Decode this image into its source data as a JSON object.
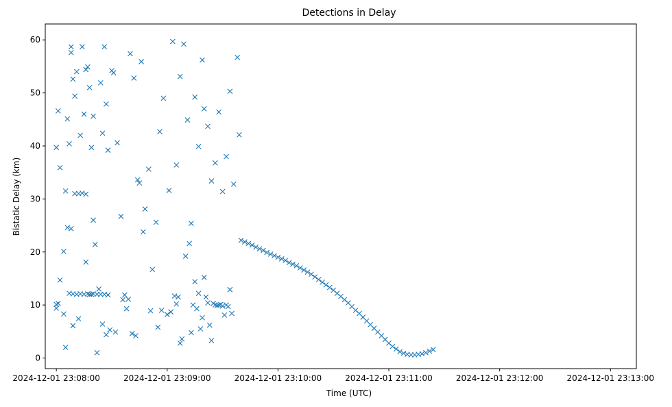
{
  "chart_data": {
    "type": "scatter",
    "title": "Detections in Delay",
    "xlabel": "Time (UTC)",
    "ylabel": "Bistatic Delay (km)",
    "x_unit": "datetime",
    "xlim": [
      "2024-12-01 23:07:54",
      "2024-12-01 23:13:14"
    ],
    "ylim": [
      -2,
      63
    ],
    "x_ticks": [
      "2024-12-01 23:08:00",
      "2024-12-01 23:09:00",
      "2024-12-01 23:10:00",
      "2024-12-01 23:11:00",
      "2024-12-01 23:12:00",
      "2024-12-01 23:13:00"
    ],
    "y_ticks": [
      0,
      10,
      20,
      30,
      40,
      50,
      60
    ],
    "marker": "x",
    "color": "#1f77b4",
    "grid": false,
    "legend": "none",
    "series": [
      {
        "note_points": "time in seconds after 2024-12-01 23:08:00 is not used; points below are [time, delay_km]",
        "points": [
          [
            "23:08:00",
            10.1
          ],
          [
            "23:08:00",
            9.4
          ],
          [
            "23:08:01",
            10.3
          ],
          [
            "23:08:02",
            14.7
          ],
          [
            "23:08:04",
            20.1
          ],
          [
            "23:08:05",
            31.5
          ],
          [
            "23:08:06",
            24.6
          ],
          [
            "23:08:07",
            12.2
          ],
          [
            "23:08:08",
            24.4
          ],
          [
            "23:08:09",
            12.1
          ],
          [
            "23:08:10",
            31.0
          ],
          [
            "23:08:11",
            12.0
          ],
          [
            "23:08:12",
            31.0
          ],
          [
            "23:08:13",
            12.1
          ],
          [
            "23:08:14",
            31.1
          ],
          [
            "23:08:15",
            12.0
          ],
          [
            "23:08:16",
            30.9
          ],
          [
            "23:08:17",
            12.1
          ],
          [
            "23:08:18",
            12.0
          ],
          [
            "23:08:19",
            12.0
          ],
          [
            "23:08:20",
            12.1
          ],
          [
            "23:08:22",
            12.0
          ],
          [
            "23:08:24",
            12.0
          ],
          [
            "23:08:26",
            12.0
          ],
          [
            "23:08:28",
            11.9
          ],
          [
            "23:08:00",
            39.7
          ],
          [
            "23:08:01",
            46.6
          ],
          [
            "23:08:02",
            35.9
          ],
          [
            "23:08:04",
            8.3
          ],
          [
            "23:08:06",
            45.1
          ],
          [
            "23:08:07",
            40.4
          ],
          [
            "23:08:08",
            58.7
          ],
          [
            "23:08:08",
            57.6
          ],
          [
            "23:08:09",
            52.6
          ],
          [
            "23:08:10",
            49.4
          ],
          [
            "23:08:11",
            54.0
          ],
          [
            "23:08:13",
            42.0
          ],
          [
            "23:08:14",
            58.7
          ],
          [
            "23:08:15",
            46.0
          ],
          [
            "23:08:16",
            54.4
          ],
          [
            "23:08:17",
            54.9
          ],
          [
            "23:08:18",
            51.0
          ],
          [
            "23:08:19",
            39.7
          ],
          [
            "23:08:20",
            45.6
          ],
          [
            "23:08:21",
            21.4
          ],
          [
            "23:08:22",
            1.0
          ],
          [
            "23:08:24",
            51.9
          ],
          [
            "23:08:25",
            42.4
          ],
          [
            "23:08:26",
            58.7
          ],
          [
            "23:08:27",
            47.9
          ],
          [
            "23:08:28",
            39.2
          ],
          [
            "23:08:30",
            54.2
          ],
          [
            "23:08:31",
            53.8
          ],
          [
            "23:08:33",
            40.6
          ],
          [
            "23:08:35",
            26.7
          ],
          [
            "23:08:37",
            11.9
          ],
          [
            "23:08:38",
            9.3
          ],
          [
            "23:08:40",
            57.4
          ],
          [
            "23:08:42",
            52.8
          ],
          [
            "23:08:44",
            33.6
          ],
          [
            "23:08:46",
            55.9
          ],
          [
            "23:08:48",
            28.1
          ],
          [
            "23:08:50",
            35.6
          ],
          [
            "23:08:52",
            16.7
          ],
          [
            "23:08:54",
            25.6
          ],
          [
            "23:08:56",
            42.7
          ],
          [
            "23:08:58",
            49.0
          ],
          [
            "23:08:05",
            2.0
          ],
          [
            "23:08:09",
            6.1
          ],
          [
            "23:08:12",
            7.4
          ],
          [
            "23:08:16",
            18.1
          ],
          [
            "23:08:20",
            26.0
          ],
          [
            "23:08:23",
            13.0
          ],
          [
            "23:08:25",
            6.4
          ],
          [
            "23:08:27",
            4.4
          ],
          [
            "23:08:29",
            5.3
          ],
          [
            "23:08:32",
            4.9
          ],
          [
            "23:08:36",
            11.0
          ],
          [
            "23:08:39",
            11.1
          ],
          [
            "23:08:41",
            4.6
          ],
          [
            "23:08:43",
            4.2
          ],
          [
            "23:08:45",
            33.0
          ],
          [
            "23:08:47",
            23.8
          ],
          [
            "23:08:51",
            8.9
          ],
          [
            "23:08:55",
            5.8
          ],
          [
            "23:08:57",
            9.0
          ],
          [
            "23:09:00",
            8.2
          ],
          [
            "23:09:02",
            8.7
          ],
          [
            "23:09:04",
            11.7
          ],
          [
            "23:09:05",
            10.2
          ],
          [
            "23:09:06",
            11.5
          ],
          [
            "23:09:07",
            2.8
          ],
          [
            "23:09:08",
            3.6
          ],
          [
            "23:09:10",
            19.2
          ],
          [
            "23:09:12",
            21.6
          ],
          [
            "23:09:13",
            4.8
          ],
          [
            "23:09:14",
            10.0
          ],
          [
            "23:09:15",
            14.4
          ],
          [
            "23:09:16",
            9.3
          ],
          [
            "23:09:17",
            12.2
          ],
          [
            "23:09:18",
            5.5
          ],
          [
            "23:09:19",
            7.6
          ],
          [
            "23:09:20",
            15.2
          ],
          [
            "23:09:21",
            11.5
          ],
          [
            "23:09:22",
            10.4
          ],
          [
            "23:09:23",
            6.2
          ],
          [
            "23:09:24",
            3.3
          ],
          [
            "23:09:25",
            10.3
          ],
          [
            "23:09:26",
            10.0
          ],
          [
            "23:09:27",
            9.9
          ],
          [
            "23:09:28",
            10.0
          ],
          [
            "23:09:29",
            10.1
          ],
          [
            "23:09:30",
            9.8
          ],
          [
            "23:09:31",
            8.1
          ],
          [
            "23:09:32",
            10.0
          ],
          [
            "23:09:33",
            9.7
          ],
          [
            "23:09:34",
            12.9
          ],
          [
            "23:09:35",
            8.4
          ],
          [
            "23:09:01",
            31.6
          ],
          [
            "23:09:03",
            59.7
          ],
          [
            "23:09:05",
            36.4
          ],
          [
            "23:09:07",
            53.1
          ],
          [
            "23:09:09",
            59.2
          ],
          [
            "23:09:11",
            44.9
          ],
          [
            "23:09:13",
            25.4
          ],
          [
            "23:09:15",
            49.2
          ],
          [
            "23:09:17",
            39.9
          ],
          [
            "23:09:19",
            56.2
          ],
          [
            "23:09:20",
            47.0
          ],
          [
            "23:09:22",
            43.7
          ],
          [
            "23:09:24",
            33.4
          ],
          [
            "23:09:26",
            36.8
          ],
          [
            "23:09:28",
            46.4
          ],
          [
            "23:09:30",
            31.4
          ],
          [
            "23:09:32",
            38.0
          ],
          [
            "23:09:34",
            50.3
          ],
          [
            "23:09:36",
            32.8
          ],
          [
            "23:09:38",
            56.7
          ],
          [
            "23:09:39",
            42.1
          ],
          [
            "23:09:40",
            22.2
          ],
          [
            "23:09:42",
            21.9
          ],
          [
            "23:09:44",
            21.6
          ],
          [
            "23:09:46",
            21.3
          ],
          [
            "23:09:48",
            20.9
          ],
          [
            "23:09:50",
            20.6
          ],
          [
            "23:09:52",
            20.3
          ],
          [
            "23:09:54",
            19.9
          ],
          [
            "23:09:56",
            19.6
          ],
          [
            "23:09:58",
            19.3
          ],
          [
            "23:10:00",
            19.0
          ],
          [
            "23:10:02",
            18.7
          ],
          [
            "23:10:04",
            18.4
          ],
          [
            "23:10:06",
            18.0
          ],
          [
            "23:10:08",
            17.7
          ],
          [
            "23:10:10",
            17.4
          ],
          [
            "23:10:12",
            17.0
          ],
          [
            "23:10:14",
            16.6
          ],
          [
            "23:10:16",
            16.2
          ],
          [
            "23:10:18",
            15.8
          ],
          [
            "23:10:20",
            15.3
          ],
          [
            "23:10:22",
            14.8
          ],
          [
            "23:10:24",
            14.3
          ],
          [
            "23:10:26",
            13.8
          ],
          [
            "23:10:28",
            13.3
          ],
          [
            "23:10:30",
            12.8
          ],
          [
            "23:10:32",
            12.2
          ],
          [
            "23:10:34",
            11.6
          ],
          [
            "23:10:36",
            11.0
          ],
          [
            "23:10:38",
            10.4
          ],
          [
            "23:10:40",
            9.7
          ],
          [
            "23:10:42",
            9.0
          ],
          [
            "23:10:44",
            8.4
          ],
          [
            "23:10:46",
            7.7
          ],
          [
            "23:10:48",
            7.0
          ],
          [
            "23:10:50",
            6.3
          ],
          [
            "23:10:52",
            5.6
          ],
          [
            "23:10:54",
            4.9
          ],
          [
            "23:10:56",
            4.2
          ],
          [
            "23:10:58",
            3.5
          ],
          [
            "23:11:00",
            2.8
          ],
          [
            "23:11:02",
            2.2
          ],
          [
            "23:11:04",
            1.7
          ],
          [
            "23:11:06",
            1.2
          ],
          [
            "23:11:08",
            0.9
          ],
          [
            "23:11:10",
            0.7
          ],
          [
            "23:11:12",
            0.6
          ],
          [
            "23:11:14",
            0.6
          ],
          [
            "23:11:16",
            0.7
          ],
          [
            "23:11:18",
            0.8
          ],
          [
            "23:11:20",
            1.0
          ],
          [
            "23:11:22",
            1.3
          ],
          [
            "23:11:24",
            1.6
          ]
        ]
      }
    ]
  }
}
